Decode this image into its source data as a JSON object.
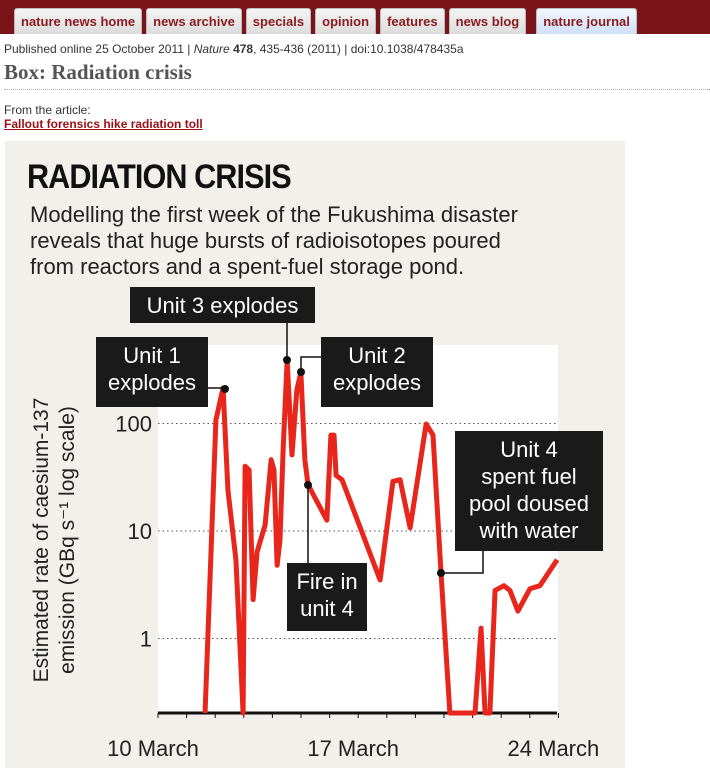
{
  "nav": {
    "tabs": [
      "nature news home",
      "news archive",
      "specials",
      "opinion",
      "features",
      "news blog"
    ],
    "journal": "nature journal"
  },
  "meta": {
    "published": "Published online 25 October 2011 | ",
    "journal": "Nature",
    "volume": " 478",
    "rest": ", 435-436 (2011) | doi:10.1038/478435a"
  },
  "page_title": "Box: Radiation crisis",
  "from_label": "From the article:",
  "article_link": "Fallout forensics hike radiation toll",
  "figure": {
    "title": "RADIATION CRISIS",
    "subtitle": [
      "Modelling the first week of the Fukushima disaster",
      "reveals that huge bursts of radioisotopes poured",
      "from reactors and a spent-fuel storage pond."
    ],
    "line_color": "#e8261c"
  },
  "chart_data": {
    "type": "line",
    "title": "RADIATION CRISIS",
    "ylabel": [
      "Estimated rate of caesium-137",
      "emission (GBq s⁻¹ log scale)"
    ],
    "xlabel": "",
    "yscale": "log",
    "ylim": [
      0.2,
      400
    ],
    "xlim": [
      10,
      24.2
    ],
    "yticks": [
      {
        "v": 100,
        "label": "100"
      },
      {
        "v": 10,
        "label": "10"
      },
      {
        "v": 1,
        "label": "1"
      }
    ],
    "xticks": [
      {
        "v": 10,
        "label": "10 March"
      },
      {
        "v": 17,
        "label": "17 March"
      },
      {
        "v": 24,
        "label": "24 March"
      }
    ],
    "x": [
      11.82,
      12.2,
      12.45,
      12.62,
      12.9,
      13.15,
      13.22,
      13.36,
      13.5,
      13.64,
      13.92,
      14.13,
      14.23,
      14.34,
      14.44,
      14.55,
      14.69,
      14.86,
      15.03,
      15.17,
      15.31,
      15.42,
      16.08,
      16.22,
      16.33,
      16.4,
      16.61,
      17.94,
      18.39,
      18.64,
      18.99,
      19.55,
      19.79,
      20.07,
      20.38,
      21.26,
      21.47,
      21.61,
      21.78,
      21.96,
      22.27,
      22.48,
      22.76,
      23.18,
      23.53,
      24.13
    ],
    "y": [
      0.2,
      108,
      214,
      24,
      5.4,
      0.2,
      40,
      37,
      2.3,
      6.4,
      11.4,
      46,
      37,
      4.8,
      8.2,
      57,
      390,
      51,
      205,
      300,
      46,
      27,
      12.6,
      78,
      78,
      33,
      30,
      3.5,
      29,
      30,
      10.7,
      99,
      78,
      4.1,
      0.2,
      0.2,
      1.25,
      0.2,
      0.2,
      2.8,
      3.1,
      2.8,
      1.8,
      2.9,
      3.1,
      5.4
    ],
    "annotations": [
      {
        "text": [
          "Unit 1",
          "explodes"
        ],
        "x": 12.45,
        "y": 214
      },
      {
        "text": [
          "Unit 3 explodes"
        ],
        "x": 14.69,
        "y": 390
      },
      {
        "text": [
          "Unit 2",
          "explodes"
        ],
        "x": 15.17,
        "y": 300
      },
      {
        "text": [
          "Fire in",
          "unit 4"
        ],
        "x": 15.42,
        "y": 27
      },
      {
        "text": [
          "Unit 4",
          "spent fuel",
          "pool doused",
          "with water"
        ],
        "x": 20.07,
        "y": 4.1
      }
    ]
  }
}
